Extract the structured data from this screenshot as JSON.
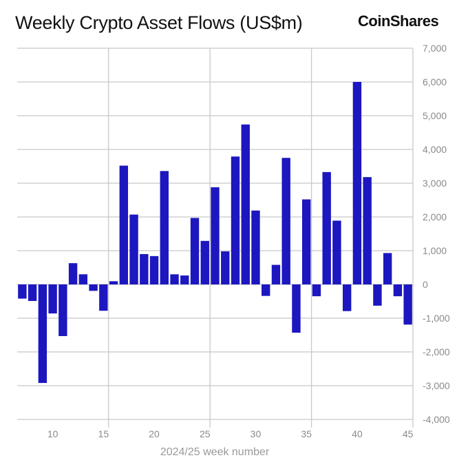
{
  "chart_data": {
    "type": "bar",
    "title": "Weekly Crypto Asset Flows (US$m)",
    "brand": "CoinShares",
    "xlabel": "2024/25 week number",
    "ylabel": "",
    "x": [
      7,
      8,
      9,
      10,
      11,
      12,
      13,
      14,
      15,
      16,
      17,
      18,
      19,
      20,
      21,
      22,
      23,
      24,
      25,
      26,
      27,
      28,
      29,
      30,
      31,
      32,
      33,
      34,
      35,
      36,
      37,
      38,
      39,
      40,
      41,
      42,
      43,
      44,
      45
    ],
    "values": [
      -420,
      -490,
      -2920,
      -860,
      -1530,
      630,
      300,
      -190,
      -780,
      95,
      3520,
      2070,
      900,
      840,
      3360,
      300,
      265,
      1970,
      1290,
      2880,
      980,
      3790,
      4740,
      2190,
      -340,
      580,
      3750,
      -1430,
      2520,
      -350,
      3330,
      1890,
      -790,
      6000,
      3180,
      -630,
      930,
      -350,
      -1190
    ],
    "ylim": [
      -4000,
      7000
    ],
    "xlim": [
      6.5,
      45.5
    ],
    "y_ticks": [
      "7,000",
      "6,000",
      "5,000",
      "4,000",
      "3,000",
      "2,000",
      "1,000",
      "0",
      "-1,000",
      "-2,000",
      "-3,000",
      "-4,000"
    ],
    "y_tick_values": [
      7000,
      6000,
      5000,
      4000,
      3000,
      2000,
      1000,
      0,
      -1000,
      -2000,
      -3000,
      -4000
    ],
    "x_ticks": [
      "10",
      "15",
      "20",
      "25",
      "30",
      "35",
      "40",
      "45"
    ],
    "x_tick_values": [
      10,
      15,
      20,
      25,
      30,
      35,
      40,
      45
    ],
    "x_gridlines": [
      15.5,
      25.5,
      35.5
    ],
    "y_axis_position": "right",
    "grid": true,
    "bar_color": "#1c17bf",
    "grid_color": "#c8c8c8"
  }
}
